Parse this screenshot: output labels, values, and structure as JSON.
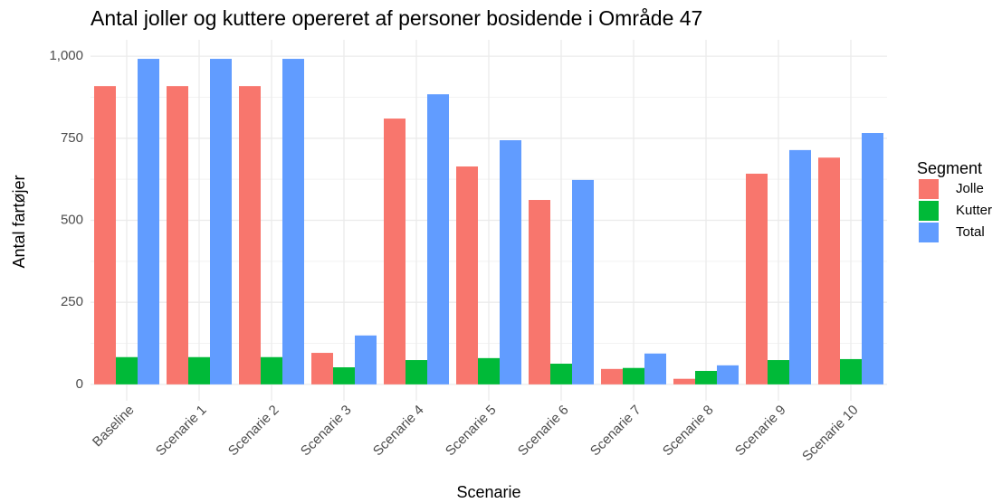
{
  "chart_data": {
    "type": "bar",
    "title": "Antal joller og kuttere opereret af personer bosidende i Område 47",
    "xlabel": "Scenarie",
    "ylabel": "Antal fartøjer",
    "legend_title": "Segment",
    "legend": "right",
    "categories": [
      "Baseline",
      "Scenarie 1",
      "Scenarie 2",
      "Scenarie 3",
      "Scenarie 4",
      "Scenarie 5",
      "Scenarie 6",
      "Scenarie 7",
      "Scenarie 8",
      "Scenarie 9",
      "Scenarie 10"
    ],
    "series": [
      {
        "name": "Jolle",
        "color": "#f8766d",
        "values": [
          909,
          909,
          909,
          96,
          810,
          664,
          562,
          47,
          17,
          642,
          691
        ]
      },
      {
        "name": "Kutter",
        "color": "#00ba38",
        "values": [
          83,
          83,
          83,
          52,
          74,
          80,
          63,
          50,
          41,
          74,
          77
        ]
      },
      {
        "name": "Total",
        "color": "#619cff",
        "values": [
          992,
          992,
          992,
          149,
          884,
          744,
          623,
          94,
          58,
          714,
          766
        ]
      }
    ],
    "ylim": [
      -50,
      1050
    ],
    "yticks": [
      0,
      250,
      500,
      750,
      {
        "value": 1000,
        "label": "1,000"
      }
    ],
    "grid": true
  }
}
